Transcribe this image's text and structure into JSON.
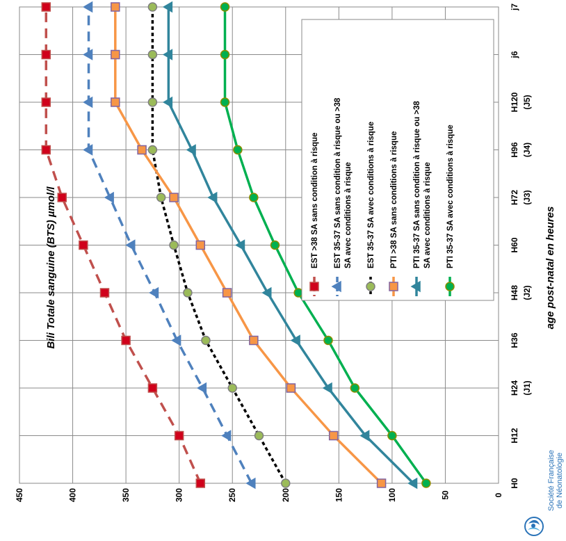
{
  "chart_data": {
    "type": "line",
    "xlabel": "age post-natal en heures",
    "ylabel": "Bili Totale sanguine (BTS) µmol/l",
    "ylim": [
      0,
      450
    ],
    "yticks": [
      0,
      50,
      100,
      150,
      200,
      250,
      300,
      350,
      400,
      450
    ],
    "categories": [
      [
        "H0"
      ],
      [
        "H12"
      ],
      [
        "H24",
        "(J1)"
      ],
      [
        "H36"
      ],
      [
        "H48",
        "(J2)"
      ],
      [
        "H60"
      ],
      [
        "H72",
        "(J3)"
      ],
      [
        "H96",
        "(J4)"
      ],
      [
        "H120",
        "(J5)"
      ],
      [
        "j6"
      ],
      [
        "j7"
      ]
    ],
    "grid": true,
    "legend_position": "right",
    "series": [
      {
        "name": "EST >38 SA sans condition à risque",
        "color": "#c0504d",
        "dash": "dashed",
        "marker": "square",
        "marker_fill": "#d0021b",
        "marker_stroke": "#c0504d",
        "x_index": [
          0,
          1,
          2,
          3,
          4,
          5,
          6,
          7,
          8,
          9,
          10
        ],
        "values": [
          280,
          300,
          325,
          350,
          370,
          390,
          410,
          425,
          425,
          425,
          425
        ]
      },
      {
        "name": "EST 35-37 SA sans condition à risque ou >38 SA avec conditions à risque",
        "color": "#4f81bd",
        "dash": "dashed",
        "marker": "triangle",
        "marker_fill": "#4f81bd",
        "marker_stroke": "#4f81bd",
        "x_index": [
          0,
          1,
          2,
          3,
          4,
          5,
          6,
          7,
          8,
          9,
          10
        ],
        "values": [
          232,
          255,
          278,
          302,
          323,
          345,
          365,
          385,
          385,
          385,
          385
        ]
      },
      {
        "name": "EST 35-37 SA avec conditions à risque",
        "color": "#000000",
        "dash": "dotted",
        "marker": "circle",
        "marker_fill": "#9bbb59",
        "marker_stroke": "#7f7f7f",
        "x_index": [
          0,
          1,
          2,
          3,
          4,
          5,
          6,
          7,
          8,
          9,
          10
        ],
        "values": [
          200,
          225,
          250,
          275,
          292,
          305,
          317,
          325,
          325,
          325,
          325
        ]
      },
      {
        "name": "PTI >38 SA sans conditions à risque",
        "color": "#f79646",
        "dash": "solid",
        "marker": "square",
        "marker_fill": "#f79646",
        "marker_stroke": "#8064a2",
        "x_index": [
          0,
          1,
          2,
          3,
          4,
          5,
          6,
          7,
          8,
          9,
          10
        ],
        "values": [
          110,
          155,
          195,
          230,
          255,
          280,
          305,
          335,
          360,
          360,
          360
        ]
      },
      {
        "name": "PTI 35-37 SA sans condition à risque ou >38 SA avec conditions à risque",
        "color": "#31859c",
        "dash": "solid",
        "marker": "triangle",
        "marker_fill": "#31859c",
        "marker_stroke": "#31859c",
        "x_index": [
          0,
          1,
          2,
          3,
          4,
          5,
          6,
          7,
          8,
          9,
          10
        ],
        "values": [
          80,
          125,
          160,
          190,
          217,
          242,
          268,
          288,
          310,
          310,
          310
        ]
      },
      {
        "name": "PTI 35-37 SA avec conditions à risque",
        "color": "#00b050",
        "dash": "solid",
        "marker": "circle",
        "marker_fill": "#00b050",
        "marker_stroke": "#8d8d00",
        "x_index": [
          0,
          1,
          2,
          3,
          4,
          5,
          6,
          7,
          8,
          9,
          10
        ],
        "values": [
          68,
          100,
          135,
          160,
          188,
          210,
          230,
          245,
          257,
          257,
          257
        ]
      }
    ]
  },
  "logo": {
    "line1": "Société Française",
    "line2": "de Néonatologie",
    "color": "#2a73b8"
  }
}
